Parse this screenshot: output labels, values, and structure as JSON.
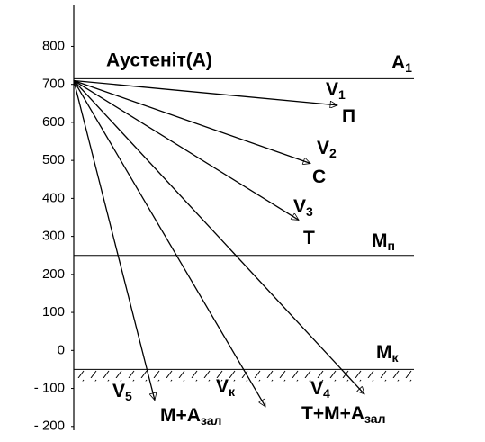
{
  "chart_data": {
    "type": "cooling",
    "title": "Аустеніт(А)",
    "ylim": [
      -210,
      910
    ],
    "yticks": [
      {
        "value": -200,
        "label": "- 200"
      },
      {
        "value": -100,
        "label": "- 100"
      },
      0,
      100,
      200,
      300,
      400,
      500,
      600,
      700,
      800
    ],
    "levels": [
      {
        "label": {
          "main": "А",
          "sub": "1"
        },
        "value": 715
      },
      {
        "label": {
          "main": "М",
          "sub": "п"
        },
        "value": 250
      },
      {
        "label": {
          "main": "М",
          "sub": "к"
        },
        "value": -50
      }
    ],
    "start": 710,
    "rays": [
      {
        "name": {
          "main": "V",
          "sub": "1"
        },
        "end": 645,
        "product": {
          "main": "П",
          "sub": ""
        }
      },
      {
        "name": {
          "main": "V",
          "sub": "2"
        },
        "end": 492,
        "product": {
          "main": "С",
          "sub": ""
        }
      },
      {
        "name": {
          "main": "V",
          "sub": "3"
        },
        "end": 343,
        "product": {
          "main": "Т",
          "sub": ""
        }
      },
      {
        "name": {
          "main": "V",
          "sub": "4"
        },
        "end": -115,
        "product": {
          "main": "Т+М+А",
          "sub": "зал"
        }
      },
      {
        "name": {
          "main": "V",
          "sub": "к"
        },
        "end": -148,
        "product": null
      },
      {
        "name": {
          "main": "V",
          "sub": "5"
        },
        "end": -131,
        "product": {
          "main": "М+А",
          "sub": "зал"
        }
      }
    ]
  }
}
